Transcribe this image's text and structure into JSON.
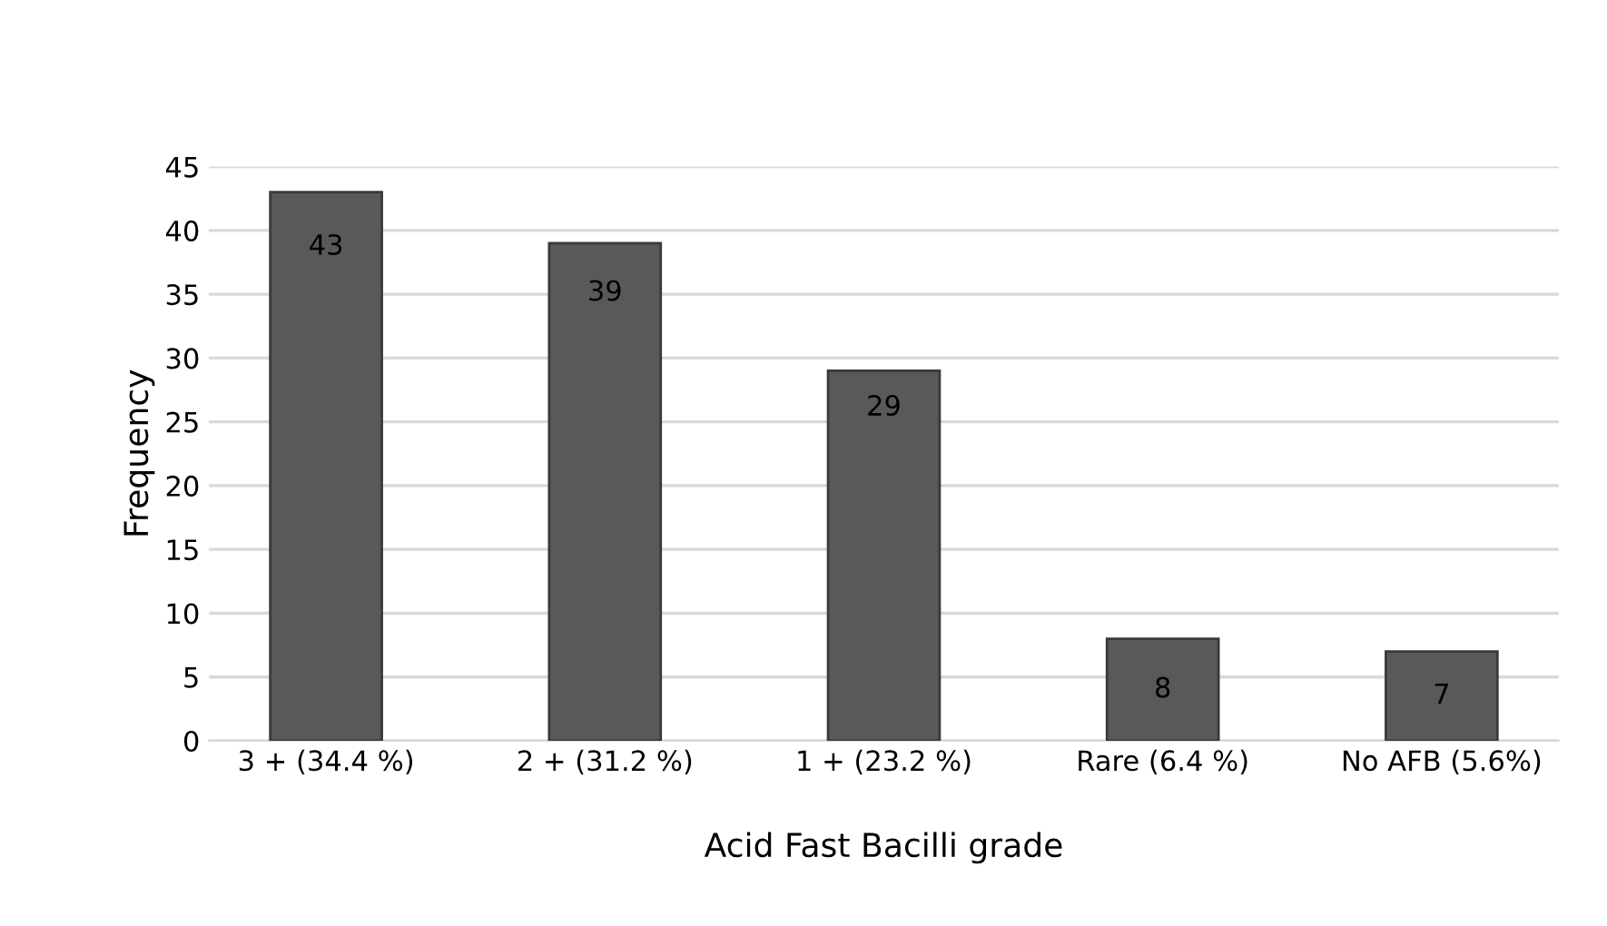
{
  "chart_data": {
    "type": "bar",
    "xlabel": "Acid Fast Bacilli grade",
    "ylabel": "Frequency",
    "categories": [
      "3 + (34.4 %)",
      "2 + (31.2 %)",
      "1 + (23.2 %)",
      "Rare (6.4 %)",
      "No AFB (5.6%)"
    ],
    "values": [
      43,
      39,
      29,
      8,
      7
    ],
    "color": "#595959",
    "ylim": [
      0,
      45
    ],
    "yticks": [
      0,
      5,
      10,
      15,
      20,
      25,
      30,
      35,
      40,
      45
    ],
    "grid": "y",
    "data_labels": true
  }
}
